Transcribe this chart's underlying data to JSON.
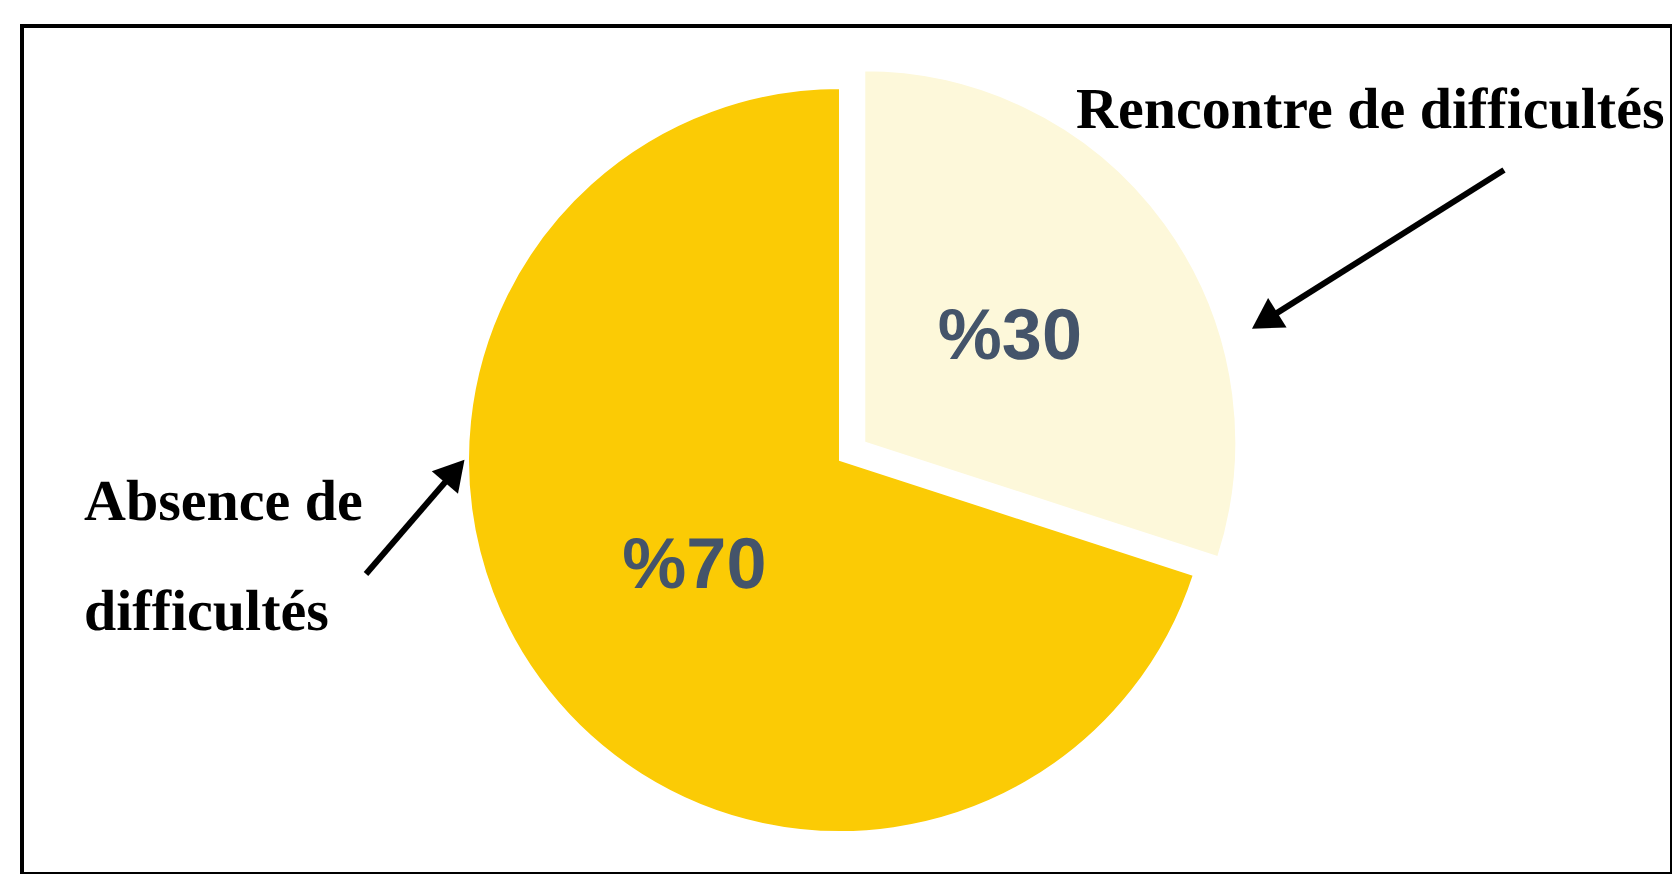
{
  "chart_data": {
    "type": "pie",
    "categories": [
      "Rencontre de difficultés",
      "Absence de difficultés"
    ],
    "values": [
      30,
      70
    ],
    "colors": [
      "#fdf8da",
      "#fbcb05"
    ],
    "value_labels": [
      "%30",
      "%70"
    ]
  }
}
